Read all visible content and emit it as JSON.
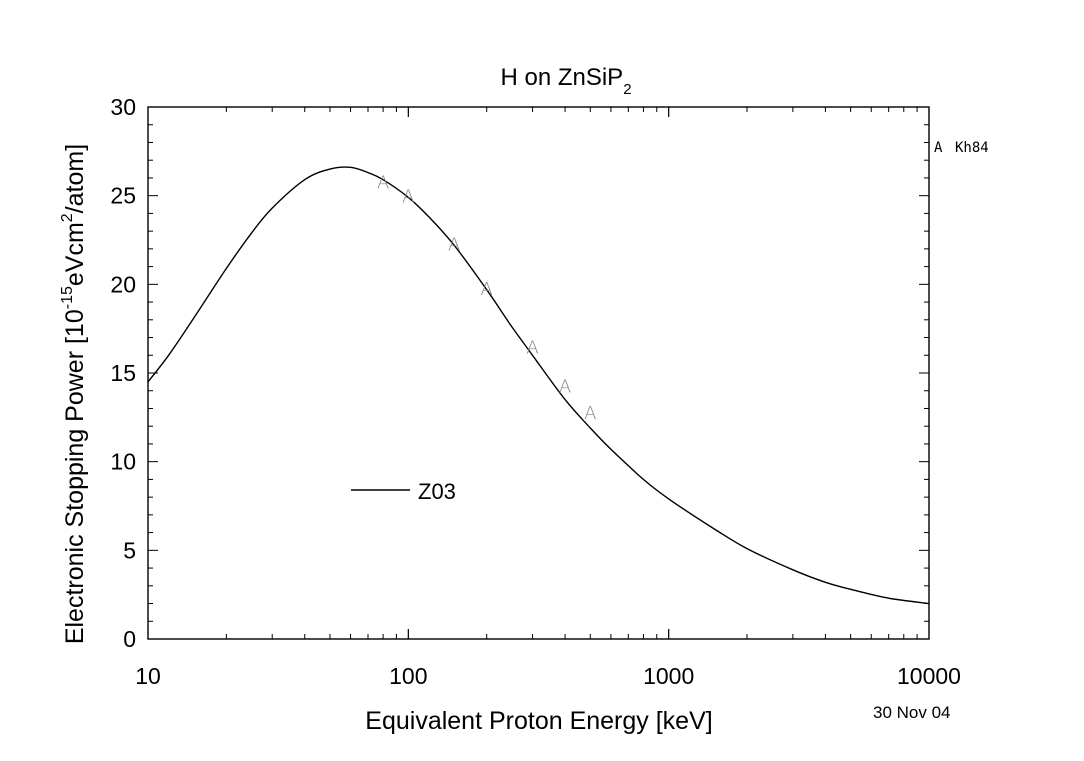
{
  "chart_data": {
    "type": "line",
    "title": {
      "main": "H on ZnSiP",
      "sub": "2"
    },
    "xlabel": "Equivalent Proton Energy [keV]",
    "ylabel": {
      "a": "Electronic Stopping Power [10",
      "exp1": "-15",
      "b": "eVcm",
      "exp2": "2",
      "c": "/atom]"
    },
    "x_scale": "log",
    "xlim": [
      10,
      10000
    ],
    "ylim": [
      0,
      30
    ],
    "x_ticks": [
      10,
      100,
      1000,
      10000
    ],
    "x_tick_labels": [
      "10",
      "100",
      "1000",
      "10000"
    ],
    "y_ticks": [
      0,
      5,
      10,
      15,
      20,
      25,
      30
    ],
    "y_tick_labels": [
      "0",
      "5",
      "10",
      "15",
      "20",
      "25",
      "30"
    ],
    "series": [
      {
        "name": "Z03",
        "style": "line",
        "x": [
          10,
          12,
          15,
          20,
          25,
          30,
          40,
          50,
          60,
          70,
          80,
          100,
          120,
          150,
          200,
          250,
          300,
          400,
          500,
          600,
          800,
          1000,
          1500,
          2000,
          3000,
          4000,
          5000,
          7000,
          10000
        ],
        "y": [
          14.5,
          16.0,
          18.1,
          20.9,
          22.9,
          24.3,
          25.9,
          26.5,
          26.6,
          26.3,
          25.9,
          24.9,
          23.8,
          22.2,
          19.7,
          17.6,
          16.0,
          13.5,
          11.9,
          10.7,
          9.0,
          7.9,
          6.2,
          5.1,
          3.9,
          3.2,
          2.8,
          2.3,
          2.0
        ]
      },
      {
        "name": "Kh84",
        "marker": "A",
        "style": "markers",
        "x": [
          80,
          100,
          150,
          200,
          300,
          400,
          500
        ],
        "y": [
          25.8,
          25.0,
          22.3,
          19.8,
          16.5,
          14.3,
          12.8
        ]
      }
    ],
    "legend": [
      {
        "label": "Z03",
        "symbol": "line",
        "placement": "lower-left"
      },
      {
        "label": "Kh84",
        "symbol": "A",
        "placement": "top-right outside"
      }
    ],
    "date_stamp": "30 Nov 04",
    "grid": false,
    "colors": {
      "line": "#000000",
      "marker": "#808080",
      "background": "#ffffff"
    }
  }
}
